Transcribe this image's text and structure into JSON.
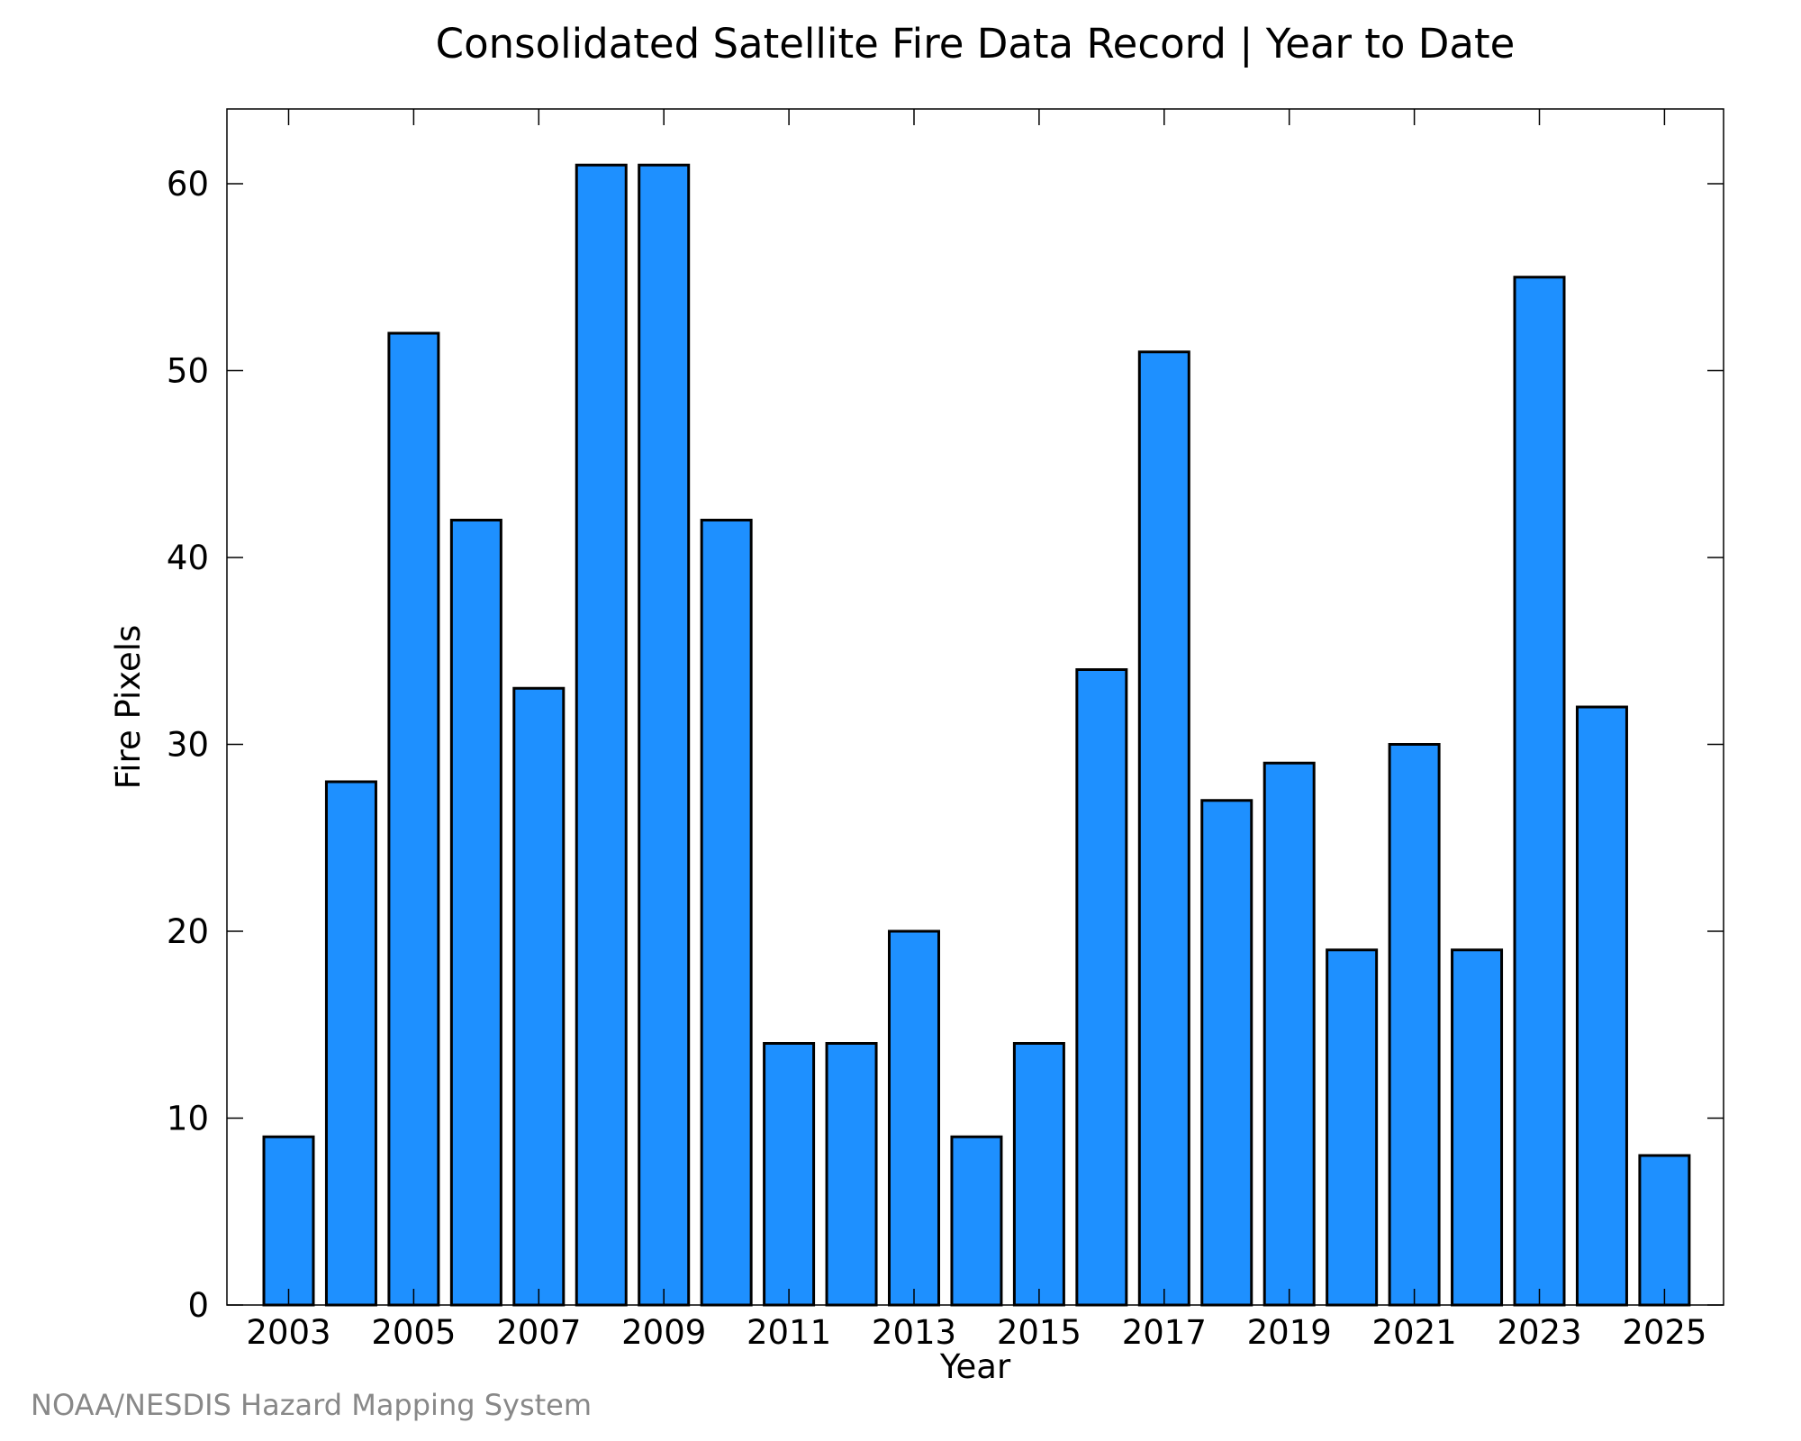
{
  "chart_data": {
    "type": "bar",
    "title": "Consolidated Satellite Fire Data Record | Year to Date",
    "xlabel": "Year",
    "ylabel": "Fire Pixels",
    "categories": [
      "2003",
      "2004",
      "2005",
      "2006",
      "2007",
      "2008",
      "2009",
      "2010",
      "2011",
      "2012",
      "2013",
      "2014",
      "2015",
      "2016",
      "2017",
      "2018",
      "2019",
      "2020",
      "2021",
      "2022",
      "2023",
      "2024",
      "2025"
    ],
    "values": [
      9,
      28,
      52,
      42,
      33,
      61,
      61,
      42,
      14,
      14,
      20,
      9,
      14,
      34,
      51,
      27,
      29,
      19,
      30,
      19,
      55,
      32,
      8
    ],
    "x_tick_labels": [
      "2003",
      "2005",
      "2007",
      "2009",
      "2011",
      "2013",
      "2015",
      "2017",
      "2019",
      "2021",
      "2023",
      "2025"
    ],
    "y_ticks": [
      0,
      10,
      20,
      30,
      40,
      50,
      60
    ],
    "ylim": [
      0,
      64
    ],
    "grid": false,
    "bar_color": "#1e90ff",
    "bar_edge_color": "#000000"
  },
  "credit": "NOAA/NESDIS Hazard Mapping System"
}
